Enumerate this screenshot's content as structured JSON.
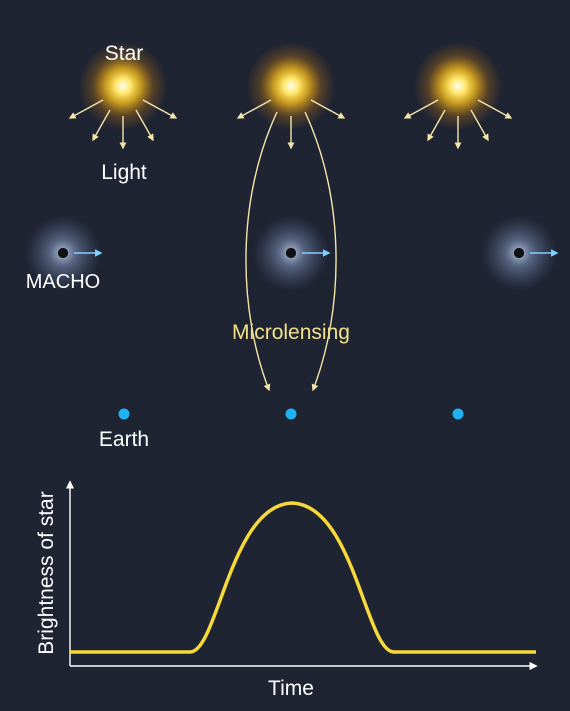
{
  "labels": {
    "star": "Star",
    "light": "Light",
    "macho": "MACHO",
    "microlensing": "Microlensing",
    "earth": "Earth"
  },
  "chart": {
    "y_label": "Brightness of star",
    "x_label": "Time"
  },
  "colors": {
    "background": "#1f2433",
    "star_core": "#fffbe6",
    "star_glow": "#ffc21a",
    "light_rays": "#f4e5a8",
    "macho_halo": "#9fb3d8",
    "macho_body": "#111111",
    "macho_arrow": "#7fd0ff",
    "earth": "#1fb2f0",
    "curve": "#f7d93a",
    "text": "#ffffff",
    "microlensing_text": "#f2e08a"
  },
  "icons": {
    "star": "glowing-star-icon",
    "macho": "dark-object-icon",
    "earth": "earth-dot-icon"
  }
}
